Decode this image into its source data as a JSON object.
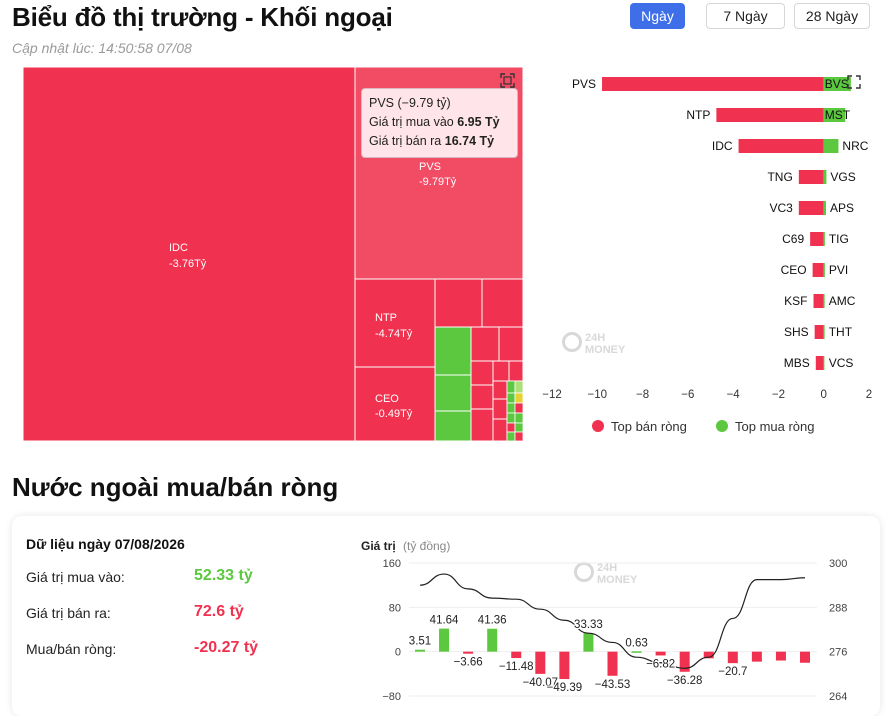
{
  "header": {
    "title": "Biểu đồ thị trường - Khối ngoại",
    "updated": "Cập nhật lúc: 14:50:58 07/08",
    "ranges": [
      "Ngày",
      "7 Ngày",
      "28 Ngày"
    ],
    "active_range": "Ngày"
  },
  "colors": {
    "red": "#f0314f",
    "green": "#5bc840",
    "accent": "#3f6fe8"
  },
  "treemap": {
    "blocks": [
      {
        "label": "IDC",
        "value_text": "-3.76Tỷ",
        "side": "sell"
      },
      {
        "label": "PVS",
        "value_text": "-9.79Tỷ",
        "side": "sell",
        "highlighted": true
      },
      {
        "label": "NTP",
        "value_text": "-4.74Tỷ",
        "side": "sell"
      },
      {
        "label": "CEO",
        "value_text": "-0.49Tỷ",
        "side": "sell"
      }
    ]
  },
  "tooltip": {
    "title": "PVS (−9.79 tỷ)",
    "buy_label": "Giá trị mua vào",
    "buy_value": "6.95 Tỷ",
    "sell_label": "Giá trị bán ra",
    "sell_value": "16.74 Tỷ"
  },
  "watermark": {
    "line1": "24H",
    "line2": "MONEY"
  },
  "chart_data": [
    {
      "type": "bar",
      "orientation": "horizontal",
      "xlim": [
        -12,
        2
      ],
      "xticks": [
        -12,
        -10,
        -8,
        -6,
        -4,
        -2,
        0,
        2
      ],
      "legend_position": "bottom",
      "series": [
        {
          "name": "Top bán ròng",
          "color": "#f0314f",
          "categories": [
            "PVS",
            "NTP",
            "IDC",
            "TNG",
            "VC3",
            "C69",
            "CEO",
            "KSF",
            "SHS",
            "MBS"
          ],
          "values": [
            -9.79,
            -4.74,
            -3.76,
            -1.1,
            -1.1,
            -0.6,
            -0.49,
            -0.45,
            -0.4,
            -0.35
          ]
        },
        {
          "name": "Top mua ròng",
          "color": "#5bc840",
          "categories": [
            "BVS",
            "MST",
            "NRC",
            "VGS",
            "APS",
            "TIG",
            "PVI",
            "AMC",
            "THT",
            "VCS"
          ],
          "values": [
            1.2,
            0.95,
            0.65,
            0.12,
            0.1,
            0.05,
            0.05,
            0.04,
            0.04,
            0.03
          ]
        }
      ]
    },
    {
      "type": "bar",
      "ylabel": "Giá trị",
      "ylabel_unit": "(tỷ đồng)",
      "ylim": [
        -80,
        160
      ],
      "yticks": [
        -80,
        0,
        80,
        160
      ],
      "y2lim": [
        264,
        300
      ],
      "y2ticks": [
        264,
        276,
        288,
        300
      ],
      "values": [
        3.51,
        41.64,
        -3.66,
        41.36,
        -11.48,
        -40.07,
        -49.39,
        33.33,
        -43.53,
        0.63,
        -6.82,
        -36.28,
        -12,
        -20.7,
        -18,
        -16,
        -20
      ],
      "value_labels": [
        "3.51",
        "41.64",
        "−3.66",
        "41.36",
        "−11.48",
        "−40.07",
        "−49.39",
        "33.33",
        "−43.53",
        "0.63",
        "−6.82",
        "−36.28",
        "",
        "−20.7",
        "",
        "",
        ""
      ],
      "line_values": [
        294,
        297,
        293,
        290.5,
        290.2,
        287.5,
        284.5,
        281,
        278.5,
        274.5,
        273,
        271.5,
        274.5,
        285,
        295.5,
        295.5,
        296
      ]
    }
  ],
  "net_card": {
    "date_label": "Dữ liệu ngày 07/08/2026",
    "buy_label": "Giá trị mua vào:",
    "buy_value": "52.33 tỷ",
    "sell_label": "Giá trị bán ra:",
    "sell_value": "72.6 tỷ",
    "net_label": "Mua/bán ròng:",
    "net_value": "-20.27 tỷ"
  },
  "section_title": "Nước ngoài mua/bán ròng"
}
